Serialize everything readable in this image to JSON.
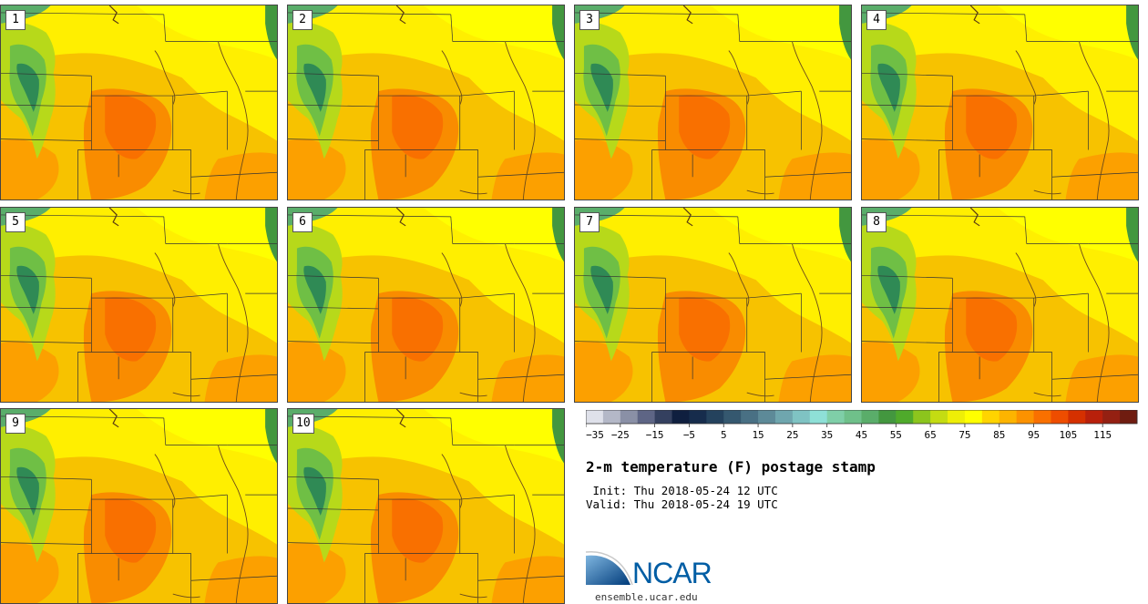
{
  "panels": [
    {
      "label": "1"
    },
    {
      "label": "2"
    },
    {
      "label": "3"
    },
    {
      "label": "4"
    },
    {
      "label": "5"
    },
    {
      "label": "6"
    },
    {
      "label": "7"
    },
    {
      "label": "8"
    },
    {
      "label": "9"
    },
    {
      "label": "10"
    }
  ],
  "colorbar": {
    "tick_labels": [
      "−35",
      "−25",
      "−15",
      "−5",
      "5",
      "15",
      "25",
      "35",
      "45",
      "55",
      "65",
      "75",
      "85",
      "95",
      "105",
      "115"
    ],
    "colors": [
      "#dfe1ea",
      "#b4b8c7",
      "#8a90a6",
      "#5e6585",
      "#34405f",
      "#0f1f3f",
      "#162c4c",
      "#24425d",
      "#35586f",
      "#497084",
      "#5d8a98",
      "#6fa6ae",
      "#7fc3c3",
      "#8ee0d7",
      "#7fcfa8",
      "#6fc08a",
      "#5aad6a",
      "#43973f",
      "#4faa2b",
      "#8cc51d",
      "#c4dc12",
      "#eeee07",
      "#ffff00",
      "#ffd400",
      "#fdb400",
      "#fc9200",
      "#f97000",
      "#ee4d00",
      "#d53000",
      "#b8200b",
      "#942012",
      "#6f1c10"
    ]
  },
  "title": "2-m temperature (F) postage stamp",
  "init": " Init: Thu 2018-05-24 12 UTC",
  "valid": "Valid: Thu 2018-05-24 19 UTC",
  "logo": {
    "text": "NCAR",
    "color": "#005da4"
  },
  "url": "ensemble.ucar.edu"
}
